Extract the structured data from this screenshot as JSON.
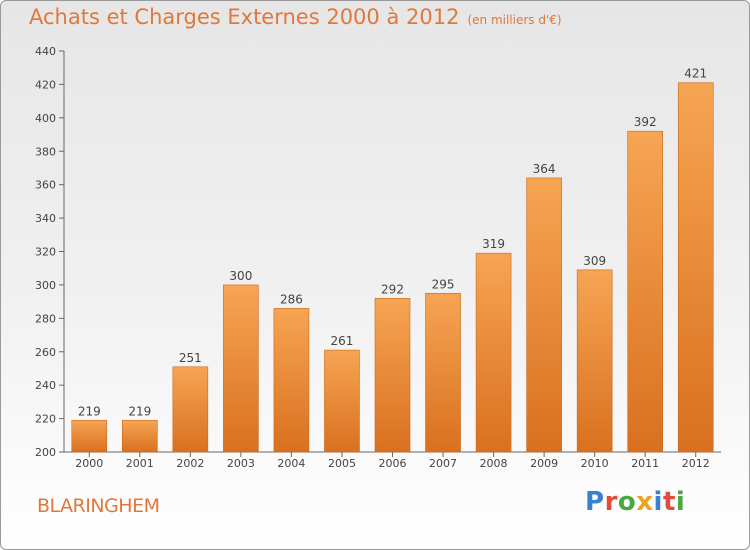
{
  "title": "Achats et Charges Externes 2000 à 2012",
  "unit_note": "(en milliers d'€)",
  "city": "BLARINGHEM",
  "logo": {
    "text": "Proxiti",
    "letters": [
      "P",
      "r",
      "o",
      "x",
      "i",
      "t",
      "i"
    ],
    "colors": [
      "#3a7fd1",
      "#e34b3c",
      "#4aa83e",
      "#f0a21c",
      "#3a7fd1",
      "#e34b3c",
      "#4aa83e"
    ]
  },
  "colors": {
    "accent": "#e0783a",
    "bar_top": "#f6a553",
    "bar_bottom": "#d9701f"
  },
  "chart_data": {
    "type": "bar",
    "categories": [
      "2000",
      "2001",
      "2002",
      "2003",
      "2004",
      "2005",
      "2006",
      "2007",
      "2008",
      "2009",
      "2010",
      "2011",
      "2012"
    ],
    "values": [
      219,
      219,
      251,
      300,
      286,
      261,
      292,
      295,
      319,
      364,
      309,
      392,
      421
    ],
    "ylim": [
      200,
      440
    ],
    "yticks": [
      200,
      220,
      240,
      260,
      280,
      300,
      320,
      340,
      360,
      380,
      400,
      420,
      440
    ],
    "grid": false,
    "data_labels": true
  }
}
